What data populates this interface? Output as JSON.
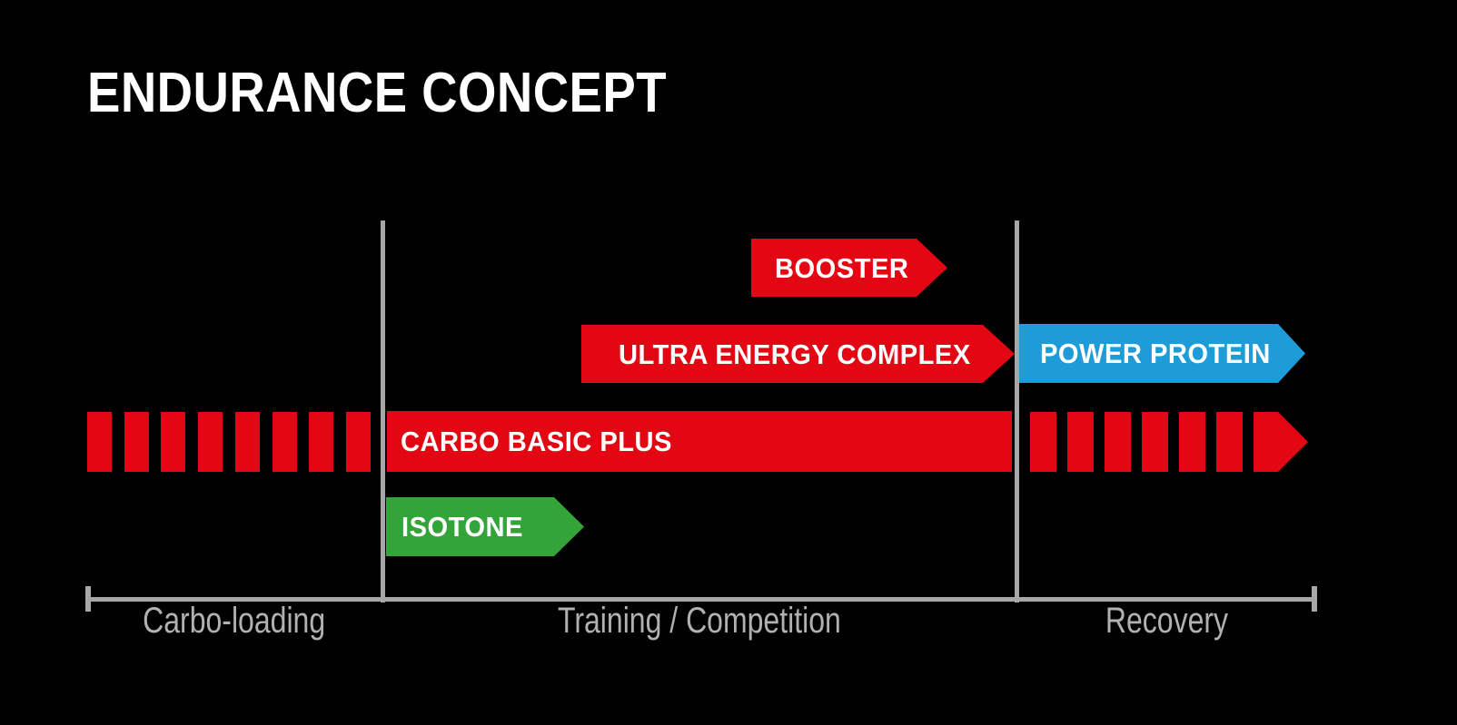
{
  "title": "ENDURANCE CONCEPT",
  "colors": {
    "background": "#000000",
    "red": "#e30613",
    "green": "#33a437",
    "blue": "#1e9cd8",
    "axis_line_gray": "#a7a7a6",
    "phase_label_gray": "#b1b1b0",
    "bar_text_white": "#ffffff"
  },
  "axis": {
    "phases": [
      {
        "label": "Carbo-loading"
      },
      {
        "label": "Training / Competition"
      },
      {
        "label": "Recovery"
      }
    ]
  },
  "products": {
    "booster": {
      "label": "BOOSTER",
      "color": "#e30613",
      "phases": [
        "Training / Competition"
      ],
      "shape": "arrow-right"
    },
    "ultra_energy_complex": {
      "label": "ULTRA ENERGY COMPLEX",
      "color": "#e30613",
      "phases": [
        "Training / Competition"
      ],
      "shape": "arrow-right"
    },
    "power_protein": {
      "label": "POWER PROTEIN",
      "color": "#1e9cd8",
      "phases": [
        "Recovery"
      ],
      "shape": "arrow-right"
    },
    "carbo_basic_plus": {
      "label": "CARBO BASIC PLUS",
      "color": "#e30613",
      "phases": [
        "Carbo-loading",
        "Training / Competition",
        "Recovery"
      ],
      "shape": "dashed-lead-in, solid bar, dashed lead-out with arrow tip",
      "dash_segments": {
        "lead_in": 8,
        "lead_out": 6
      }
    },
    "isotone": {
      "label": "ISOTONE",
      "color": "#33a437",
      "phases": [
        "Training / Competition"
      ],
      "shape": "arrow-right"
    }
  }
}
